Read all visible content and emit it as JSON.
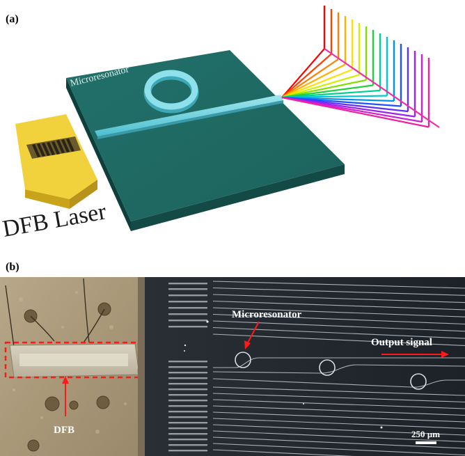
{
  "panel_a": {
    "label": "(a)",
    "microresonator_label": "Microresonator",
    "laser_label": "DFB Laser",
    "spectrum_colors": [
      "#ff0000",
      "#ff4000",
      "#ff8000",
      "#ffb000",
      "#ffe000",
      "#d0f000",
      "#80e000",
      "#20d040",
      "#00d090",
      "#00c8d0",
      "#0090f0",
      "#2050ff",
      "#6030ff",
      "#a020f0",
      "#d020d0",
      "#f020a0"
    ]
  },
  "panel_b": {
    "label": "(b)",
    "microresonator_label": "Microresonator",
    "output_label": "Output signal",
    "dfb_label": "DFB",
    "scale_label": "250 µm",
    "accent_color": "#ff1a1a"
  }
}
